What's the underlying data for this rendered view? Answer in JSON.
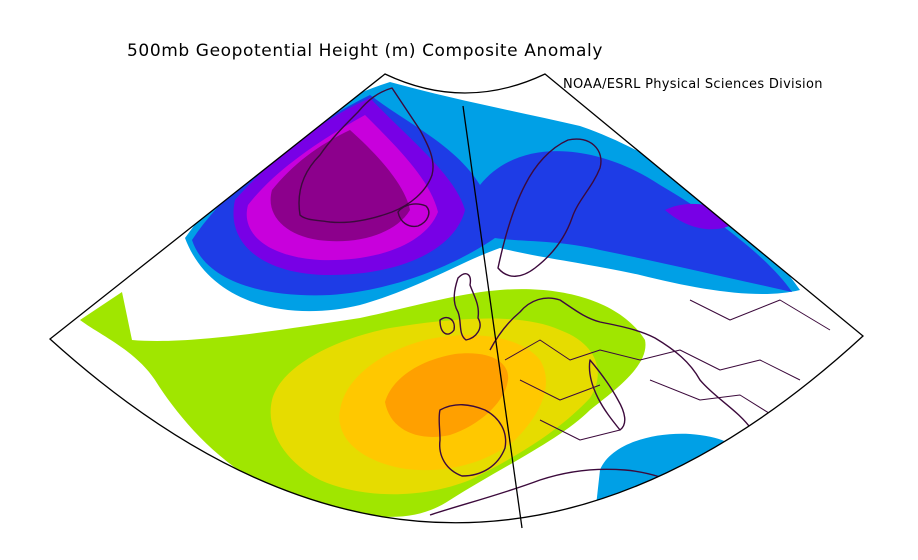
{
  "title": "500mb Geopotential Height (m) Composite Anomaly",
  "credit": "NOAA/ESRL Physical Sciences Division",
  "field": {
    "variable": "500mb Geopotential Height",
    "units": "m",
    "negative_colors": [
      "#00a0e6",
      "#1e3ce6",
      "#7800e6",
      "#c800dc",
      "#8c008c"
    ],
    "positive_colors": [
      "#a0e600",
      "#e6dc00",
      "#ffc800",
      "#ffa000"
    ]
  },
  "map": {
    "projection": "conic sector",
    "coastline_color": "#3c0a3c",
    "frame_color": "#000000"
  }
}
